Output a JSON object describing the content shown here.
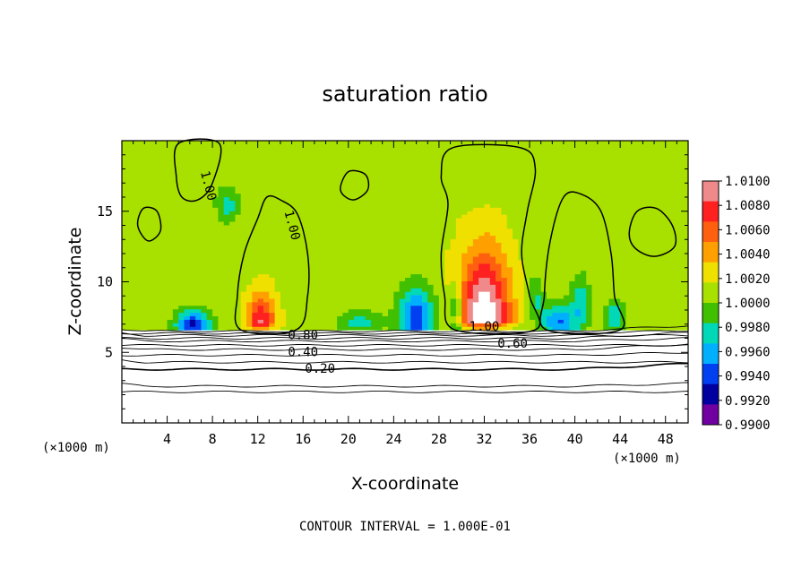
{
  "chart_data": {
    "type": "heatmap",
    "title": "saturation ratio",
    "xlabel": "X-coordinate",
    "ylabel": "Z-coordinate",
    "x_unit_left": "(×1000 m)",
    "x_unit_right": "(×1000 m)",
    "xlim": [
      0,
      50
    ],
    "ylim": [
      0,
      20
    ],
    "x_ticks": [
      4,
      8,
      12,
      16,
      20,
      24,
      28,
      32,
      36,
      40,
      44,
      48
    ],
    "y_ticks": [
      5,
      10,
      15
    ],
    "footnote": "CONTOUR INTERVAL = 1.000E-01",
    "colorbar": {
      "min": 0.99,
      "max": 1.01,
      "levels": [
        "1.0100",
        "1.0080",
        "1.0060",
        "1.0040",
        "1.0020",
        "1.0000",
        "0.9980",
        "0.9960",
        "0.9940",
        "0.9920",
        "0.9900"
      ],
      "colors": [
        "#f08a8a",
        "#ff2020",
        "#ff6010",
        "#ffa000",
        "#f0e000",
        "#a8e000",
        "#40c000",
        "#00d8b8",
        "#00b0ff",
        "#0040f0",
        "#0000a0",
        "#7000a0"
      ]
    },
    "contour_labels": [
      {
        "text": "1.00",
        "x": 15.0,
        "z": 14.0
      },
      {
        "text": "1.00",
        "x": 7.6,
        "z": 16.8
      },
      {
        "text": "1.00",
        "x": 32.0,
        "z": 6.8
      },
      {
        "text": "0.80",
        "x": 16.0,
        "z": 6.2
      },
      {
        "text": "0.60",
        "x": 34.5,
        "z": 5.6
      },
      {
        "text": "0.40",
        "x": 16.0,
        "z": 5.0
      },
      {
        "text": "0.20",
        "x": 17.5,
        "z": 3.8
      }
    ],
    "field": {
      "background": 1.0002,
      "domain_top": 6.6,
      "features": [
        {
          "kind": "plume",
          "x": 12.3,
          "z": 7.0,
          "sx": 1.3,
          "sz": 2.2,
          "peak": 1.0085
        },
        {
          "kind": "plume",
          "x": 32.0,
          "z": 7.2,
          "sx": 2.3,
          "sz": 5.0,
          "peak": 1.012
        },
        {
          "kind": "dry",
          "x": 6.3,
          "z": 7.0,
          "sx": 1.5,
          "sz": 1.0,
          "peak": 0.9915
        },
        {
          "kind": "dry",
          "x": 26.0,
          "z": 7.5,
          "sx": 1.6,
          "sz": 2.2,
          "peak": 0.9925
        },
        {
          "kind": "dry",
          "x": 38.5,
          "z": 7.2,
          "sx": 1.5,
          "sz": 1.3,
          "peak": 0.9935
        },
        {
          "kind": "dry",
          "x": 40.5,
          "z": 8.5,
          "sx": 0.8,
          "sz": 2.0,
          "peak": 0.996
        },
        {
          "kind": "dry",
          "x": 43.5,
          "z": 7.5,
          "sx": 0.8,
          "sz": 1.2,
          "peak": 0.9955
        },
        {
          "kind": "dry",
          "x": 21.0,
          "z": 7.2,
          "sx": 2.0,
          "sz": 0.8,
          "peak": 0.9965
        },
        {
          "kind": "dry",
          "x": 29.5,
          "z": 8.0,
          "sx": 0.6,
          "sz": 2.0,
          "peak": 0.9955
        },
        {
          "kind": "dry",
          "x": 9.3,
          "z": 15.5,
          "sx": 1.0,
          "sz": 1.3,
          "peak": 0.9965
        },
        {
          "kind": "dry",
          "x": 36.5,
          "z": 9.0,
          "sx": 0.7,
          "sz": 1.5,
          "peak": 0.997
        }
      ]
    }
  }
}
